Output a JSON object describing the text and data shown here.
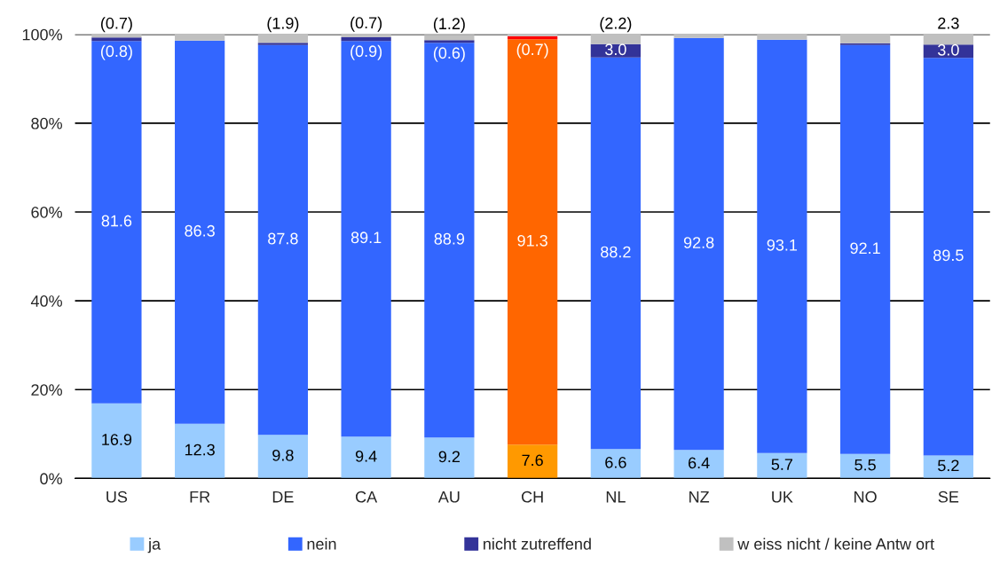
{
  "chart_data": {
    "type": "bar",
    "stacked": true,
    "categories": [
      "US",
      "FR",
      "DE",
      "CA",
      "AU",
      "CH",
      "NL",
      "NZ",
      "UK",
      "NO",
      "SE"
    ],
    "series": [
      {
        "name": "ja",
        "color": "#99ccff",
        "colors": [
          "#99ccff",
          "#99ccff",
          "#99ccff",
          "#99ccff",
          "#99ccff",
          "#ff9900",
          "#99ccff",
          "#99ccff",
          "#99ccff",
          "#99ccff",
          "#99ccff"
        ],
        "values": [
          16.9,
          12.3,
          9.8,
          9.4,
          9.2,
          7.6,
          6.6,
          6.4,
          5.7,
          5.5,
          5.2
        ],
        "value_labels": [
          "16.9",
          "12.3",
          "9.8",
          "9.4",
          "9.2",
          "7.6",
          "6.6",
          "6.4",
          "5.7",
          "5.5",
          "5.2"
        ]
      },
      {
        "name": "nein",
        "color": "#3366ff",
        "colors": [
          "#3366ff",
          "#3366ff",
          "#3366ff",
          "#3366ff",
          "#3366ff",
          "#ff6600",
          "#3366ff",
          "#3366ff",
          "#3366ff",
          "#3366ff",
          "#3366ff"
        ],
        "values": [
          81.6,
          86.3,
          87.8,
          89.1,
          88.9,
          91.3,
          88.2,
          92.8,
          93.1,
          92.1,
          89.5
        ],
        "value_labels": [
          "81.6",
          "86.3",
          "87.8",
          "89.1",
          "88.9",
          "91.3",
          "88.2",
          "92.8",
          "93.1",
          "92.1",
          "89.5"
        ]
      },
      {
        "name": "nicht zutreffend",
        "color": "#333399",
        "colors": [
          "#333399",
          "#333399",
          "#333399",
          "#333399",
          "#333399",
          "#ff0000",
          "#333399",
          "#333399",
          "#333399",
          "#333399",
          "#333399"
        ],
        "values": [
          0.8,
          0.0,
          0.5,
          0.9,
          0.6,
          0.7,
          3.0,
          0.0,
          0.0,
          0.4,
          3.0
        ],
        "value_labels": [
          "(0.8)",
          null,
          null,
          "(0.9)",
          "(0.6)",
          "(0.7)",
          "3.0",
          null,
          null,
          null,
          "3.0"
        ]
      },
      {
        "name": "w eiss nicht / keine Antw ort",
        "color": "#c0c0c0",
        "values": [
          0.7,
          1.4,
          1.9,
          0.7,
          1.2,
          0.4,
          2.2,
          0.8,
          1.2,
          2.0,
          2.3
        ],
        "value_labels": [
          "(0.7)",
          null,
          "(1.9)",
          "(0.7)",
          "(1.2)",
          null,
          "(2.2)",
          null,
          null,
          null,
          "2.3"
        ]
      }
    ],
    "ylim": [
      0,
      100
    ],
    "yticks": [
      {
        "value": 0,
        "label": "0%"
      },
      {
        "value": 20,
        "label": "20%"
      },
      {
        "value": 40,
        "label": "40%"
      },
      {
        "value": 60,
        "label": "60%"
      },
      {
        "value": 80,
        "label": "80%"
      },
      {
        "value": 100,
        "label": "100%"
      }
    ],
    "grid": "y",
    "legend": "bottom"
  }
}
